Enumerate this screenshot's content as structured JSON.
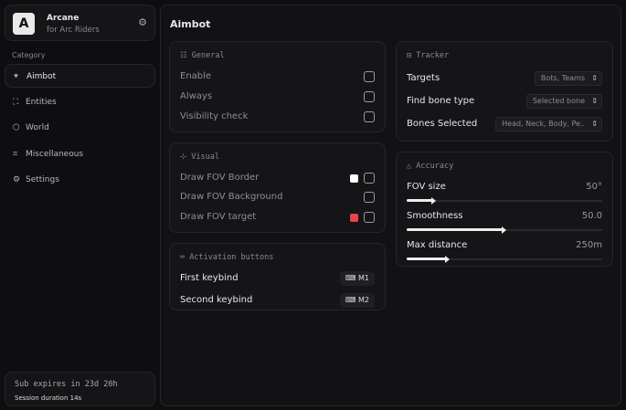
{
  "brand": {
    "logo": "A",
    "name": "Arcane",
    "subtitle": "for Arc Riders"
  },
  "sidebar": {
    "category_label": "Category",
    "items": [
      {
        "label": "Aimbot",
        "icon": "crosshair-icon",
        "active": true
      },
      {
        "label": "Entities",
        "icon": "entities-icon"
      },
      {
        "label": "World",
        "icon": "globe-icon"
      },
      {
        "label": "Miscellaneous",
        "icon": "grid-icon"
      },
      {
        "label": "Settings",
        "icon": "gear-icon"
      }
    ]
  },
  "subscription": {
    "expires": "Sub expires in 23d 20h",
    "session": "Session duration 14s"
  },
  "page_title": "Aimbot",
  "general": {
    "title": "General",
    "items": [
      {
        "label": "Enable",
        "checked": false
      },
      {
        "label": "Always",
        "checked": false
      },
      {
        "label": "Visibility check",
        "checked": false
      }
    ]
  },
  "visual": {
    "title": "Visual",
    "items": [
      {
        "label": "Draw FOV Border",
        "color": "#ffffff",
        "checked": false
      },
      {
        "label": "Draw FOV Background",
        "checked": false
      },
      {
        "label": "Draw FOV target",
        "color": "#e84545",
        "checked": false
      }
    ]
  },
  "activation": {
    "title": "Activation buttons",
    "items": [
      {
        "label": "First keybind",
        "key": "M1"
      },
      {
        "label": "Second keybind",
        "key": "M2"
      }
    ]
  },
  "tracker": {
    "title": "Tracker",
    "items": [
      {
        "label": "Targets",
        "value": "Bots, Teams"
      },
      {
        "label": "Find bone type",
        "value": "Selected bone"
      },
      {
        "label": "Bones Selected",
        "value": "Head, Neck, Body, Pe.."
      }
    ]
  },
  "accuracy": {
    "title": "Accuracy",
    "sliders": [
      {
        "label": "FOV size",
        "value": "50°",
        "fraction": 0.14
      },
      {
        "label": "Smoothness",
        "value": "50.0",
        "fraction": 0.5
      },
      {
        "label": "Max distance",
        "value": "250m",
        "fraction": 0.21
      }
    ]
  }
}
